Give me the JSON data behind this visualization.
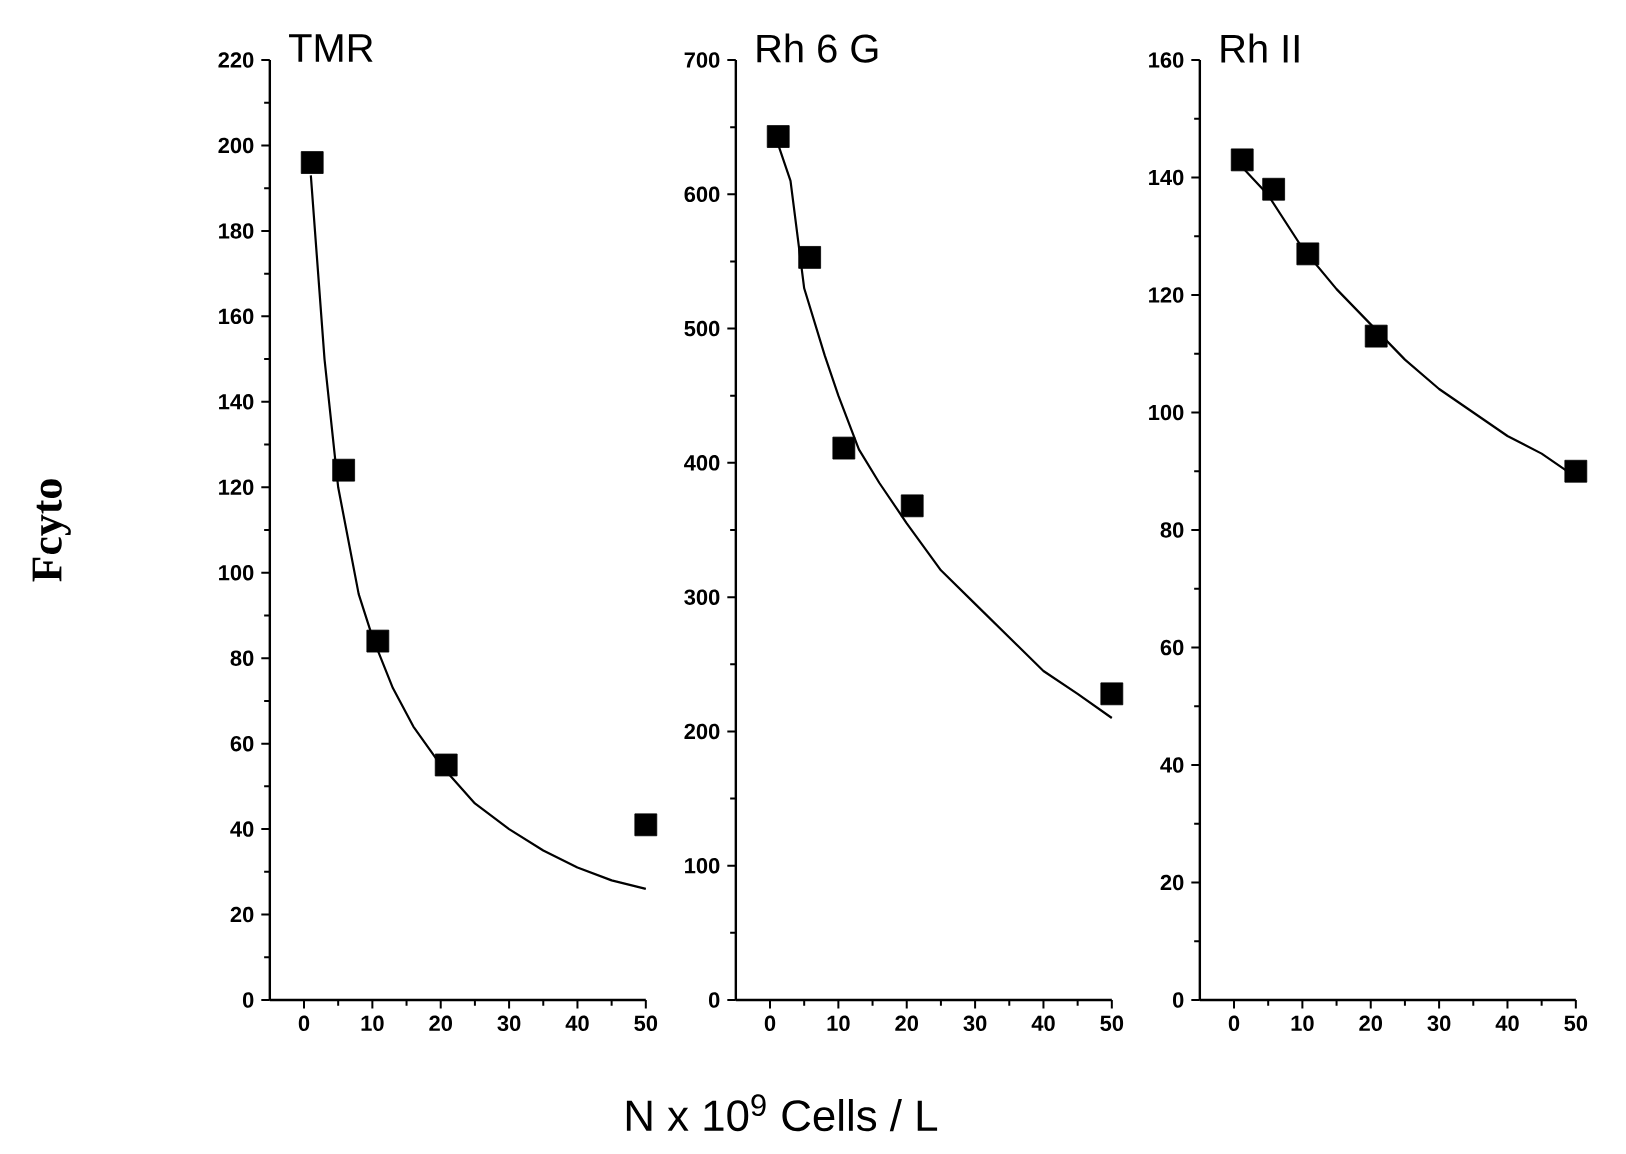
{
  "chart_data": [
    {
      "type": "line",
      "title": "TMR",
      "ylabel": "Fcyto",
      "xlim": [
        -5,
        50
      ],
      "xticks": [
        0,
        10,
        20,
        30,
        40,
        50
      ],
      "ylim": [
        0,
        220
      ],
      "yticks": [
        0,
        20,
        40,
        60,
        80,
        100,
        120,
        140,
        160,
        180,
        200,
        220
      ],
      "series": [
        {
          "type": "scatter",
          "marker": "square",
          "color": "#000000",
          "x": [
            1.2,
            5.8,
            10.8,
            20.8,
            50
          ],
          "values": [
            196,
            124,
            84,
            55,
            41
          ]
        },
        {
          "marker": "none",
          "color": "#000000",
          "x": [
            1,
            3,
            5,
            8,
            10,
            13,
            16,
            20,
            25,
            30,
            35,
            40,
            45,
            50
          ],
          "values": [
            193,
            150,
            120,
            95,
            85,
            73,
            64,
            55,
            46,
            40,
            35,
            31,
            28,
            26
          ]
        }
      ]
    },
    {
      "type": "line",
      "title": "Rh 6 G",
      "xlabel": "N x 10$^{9}$ Cells / L",
      "xlim": [
        -5,
        50
      ],
      "xticks": [
        0,
        10,
        20,
        30,
        40,
        50
      ],
      "ylim": [
        0,
        700
      ],
      "yticks": [
        0,
        100,
        200,
        300,
        400,
        500,
        600,
        700
      ],
      "series": [
        {
          "type": "scatter",
          "marker": "square",
          "color": "#000000",
          "x": [
            1.2,
            5.8,
            10.8,
            20.8,
            50
          ],
          "values": [
            643,
            553,
            411,
            368,
            228
          ]
        },
        {
          "marker": "none",
          "color": "#000000",
          "x": [
            1,
            3,
            5,
            8,
            10,
            13,
            16,
            20,
            25,
            30,
            35,
            40,
            45,
            50
          ],
          "values": [
            640,
            610,
            530,
            480,
            450,
            410,
            385,
            355,
            320,
            295,
            270,
            245,
            228,
            210
          ]
        }
      ]
    },
    {
      "type": "line",
      "title": "Rh II",
      "xlim": [
        -5,
        50
      ],
      "xticks": [
        0,
        10,
        20,
        30,
        40,
        50
      ],
      "ylim": [
        0,
        160
      ],
      "yticks": [
        0,
        20,
        40,
        60,
        80,
        100,
        120,
        140,
        160
      ],
      "series": [
        {
          "type": "scatter",
          "marker": "square",
          "color": "#000000",
          "x": [
            1.2,
            5.8,
            10.8,
            20.8,
            50
          ],
          "values": [
            143,
            138,
            127,
            113,
            90
          ]
        },
        {
          "marker": "none",
          "color": "#000000",
          "x": [
            1,
            5,
            10,
            15,
            20,
            25,
            30,
            35,
            40,
            45,
            50
          ],
          "values": [
            142,
            137,
            128,
            121,
            115,
            109,
            104,
            100,
            96,
            93,
            89
          ]
        }
      ]
    }
  ]
}
